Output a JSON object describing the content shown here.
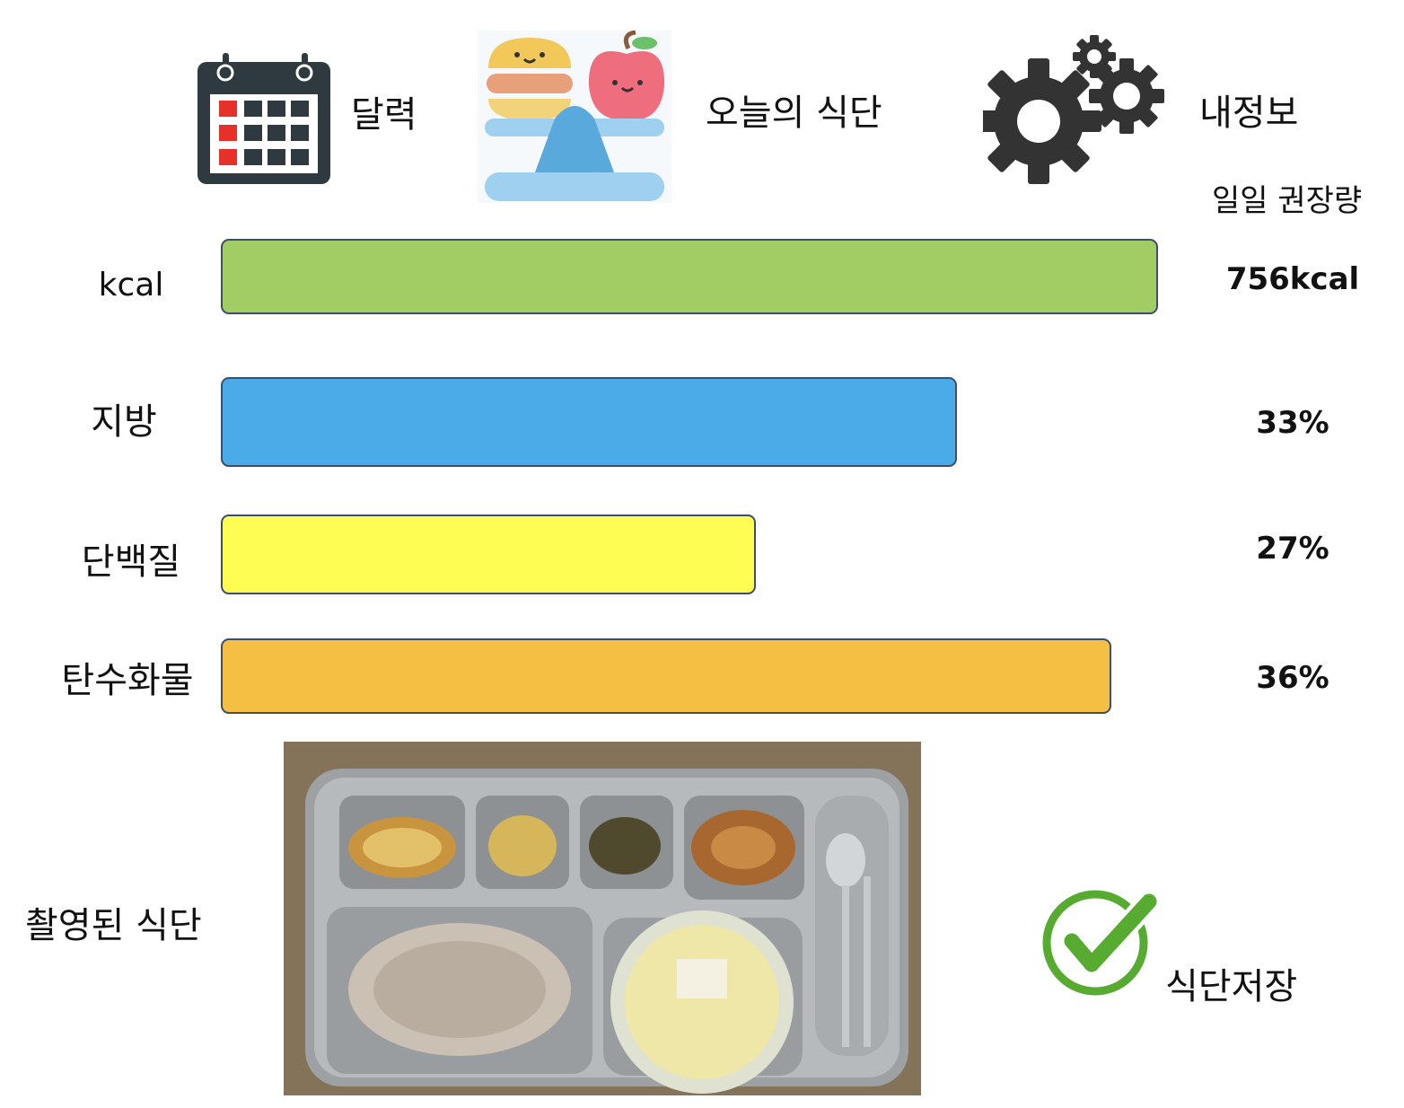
{
  "nav": {
    "calendar_label": "달력",
    "todays_meal_label": "오늘의 식단",
    "my_info_label": "내정보"
  },
  "recommendation_header": "일일 권장량",
  "nutrients": [
    {
      "label": "kcal",
      "value": "756kcal",
      "fraction": 1.0,
      "color": "#a2cd64"
    },
    {
      "label": "지방",
      "value": "33%",
      "fraction": 0.785,
      "color": "#4aabe8"
    },
    {
      "label": "단백질",
      "value": "27%",
      "fraction": 0.571,
      "color": "#fefd54"
    },
    {
      "label": "탄수화물",
      "value": "36%",
      "fraction": 0.95,
      "color": "#f4bf42"
    }
  ],
  "captured": {
    "label": "촬영된 식단",
    "photo_icon": "meal-tray-photo"
  },
  "save": {
    "label": "식단저장",
    "icon": "check-circle-icon",
    "color": "#55aa33"
  },
  "icons": {
    "calendar": "calendar-icon",
    "balance": "food-balance-icon",
    "gears": "gears-icon"
  }
}
